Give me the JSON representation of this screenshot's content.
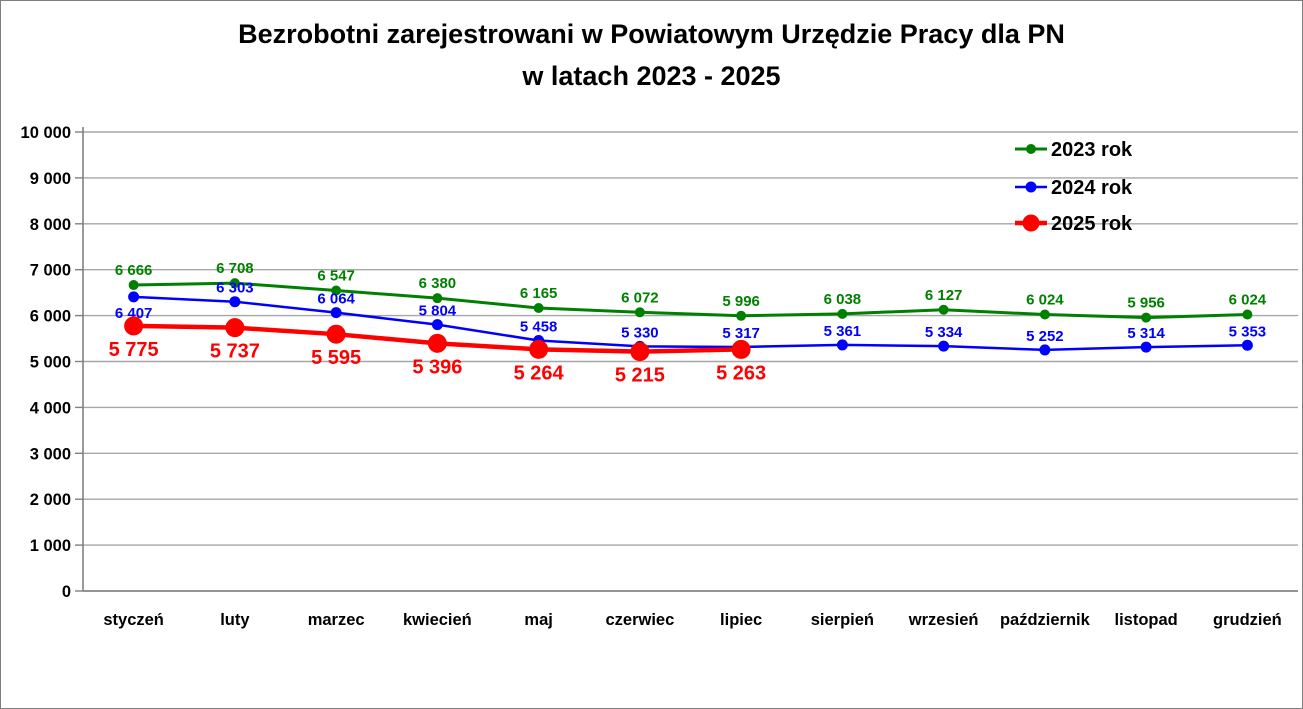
{
  "title": {
    "line1": "Bezrobotni zarejestrowani w Powiatowym Urzędzie Pracy dla PN",
    "line2": "w latach 2023 - 2025"
  },
  "chart_data": {
    "type": "line",
    "categories": [
      "styczeń",
      "luty",
      "marzec",
      "kwiecień",
      "maj",
      "czerwiec",
      "lipiec",
      "sierpień",
      "wrzesień",
      "październik",
      "listopad",
      "grudzień"
    ],
    "series": [
      {
        "name": "2023 rok",
        "color": "#008000",
        "values": [
          6666,
          6708,
          6547,
          6380,
          6165,
          6072,
          5996,
          6038,
          6127,
          6024,
          5956,
          6024
        ],
        "label_position": "above",
        "line_width": 3,
        "marker_radius": 5,
        "label_font_size": 15
      },
      {
        "name": "2024 rok",
        "color": "#0000ff",
        "values": [
          6407,
          6303,
          6064,
          5804,
          5458,
          5330,
          5317,
          5361,
          5334,
          5252,
          5314,
          5353
        ],
        "label_position": "above",
        "label_position_overrides": {
          "0": "below"
        },
        "line_width": 2.5,
        "marker_radius": 5.5,
        "label_font_size": 15
      },
      {
        "name": "2025 rok",
        "color": "#ff0000",
        "values": [
          5775,
          5737,
          5595,
          5396,
          5264,
          5215,
          5263,
          null,
          null,
          null,
          null,
          null
        ],
        "label_position": "below",
        "line_width": 4.5,
        "marker_radius": 9.5,
        "label_font_size": 20
      }
    ],
    "ylim": [
      0,
      10000
    ],
    "ytick_step": 1000,
    "ytick_labels": [
      "0",
      "1 000",
      "2 000",
      "3 000",
      "4 000",
      "5 000",
      "6 000",
      "7 000",
      "8 000",
      "9 000",
      "10 000"
    ],
    "grid": true,
    "legend_position": "top-right",
    "number_format": "space-thousands",
    "colors": {
      "gridline": "#a6a6a6",
      "axis": "#808080",
      "text": "#000000"
    }
  }
}
